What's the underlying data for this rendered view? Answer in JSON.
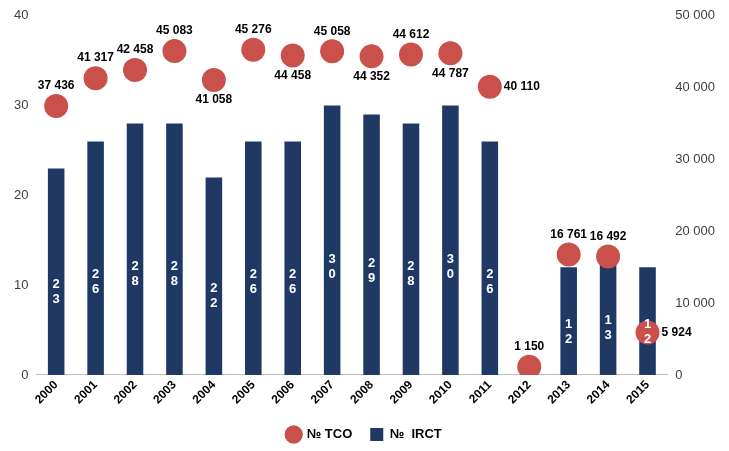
{
  "chart_data": {
    "type": "bar",
    "categories": [
      "2000",
      "2001",
      "2002",
      "2003",
      "2004",
      "2005",
      "2006",
      "2007",
      "2008",
      "2009",
      "2010",
      "2011",
      "2012",
      "2013",
      "2014",
      "2015"
    ],
    "series": [
      {
        "name": "№  IRCT",
        "type": "bar",
        "color": "#1f3864",
        "values": [
          23,
          26,
          28,
          28,
          22,
          26,
          26,
          30,
          29,
          28,
          30,
          26,
          null,
          12,
          13,
          12
        ]
      },
      {
        "name": "№ TCO",
        "type": "scatter",
        "marker": "circle",
        "color": "#c9504b",
        "axis": "y2",
        "values": [
          37436,
          41317,
          42458,
          45083,
          41058,
          45276,
          44458,
          45058,
          44352,
          44612,
          44787,
          40110,
          1150,
          16761,
          16492,
          5924
        ],
        "value_labels": [
          "37 436",
          "41 317",
          "42 458",
          "45 083",
          "41 058",
          "45 276",
          "44 458",
          "45 058",
          "44 352",
          "44 612",
          "44 787",
          "40 110",
          "1 150",
          "16 761",
          "16 492",
          "5 924"
        ]
      }
    ],
    "ylim": [
      0,
      40
    ],
    "yticks": [
      0,
      10,
      20,
      30,
      40
    ],
    "y2lim": [
      0,
      50000
    ],
    "y2ticks": [
      0,
      {
        "value": 10000,
        "label": "10 000"
      },
      {
        "value": 20000,
        "label": "20 000"
      },
      {
        "value": 30000,
        "label": "30 000"
      },
      {
        "value": 40000,
        "label": "40 000"
      },
      {
        "value": 50000,
        "label": "50 000"
      }
    ],
    "grid": false,
    "legend": "bottom",
    "data_labels": true
  }
}
